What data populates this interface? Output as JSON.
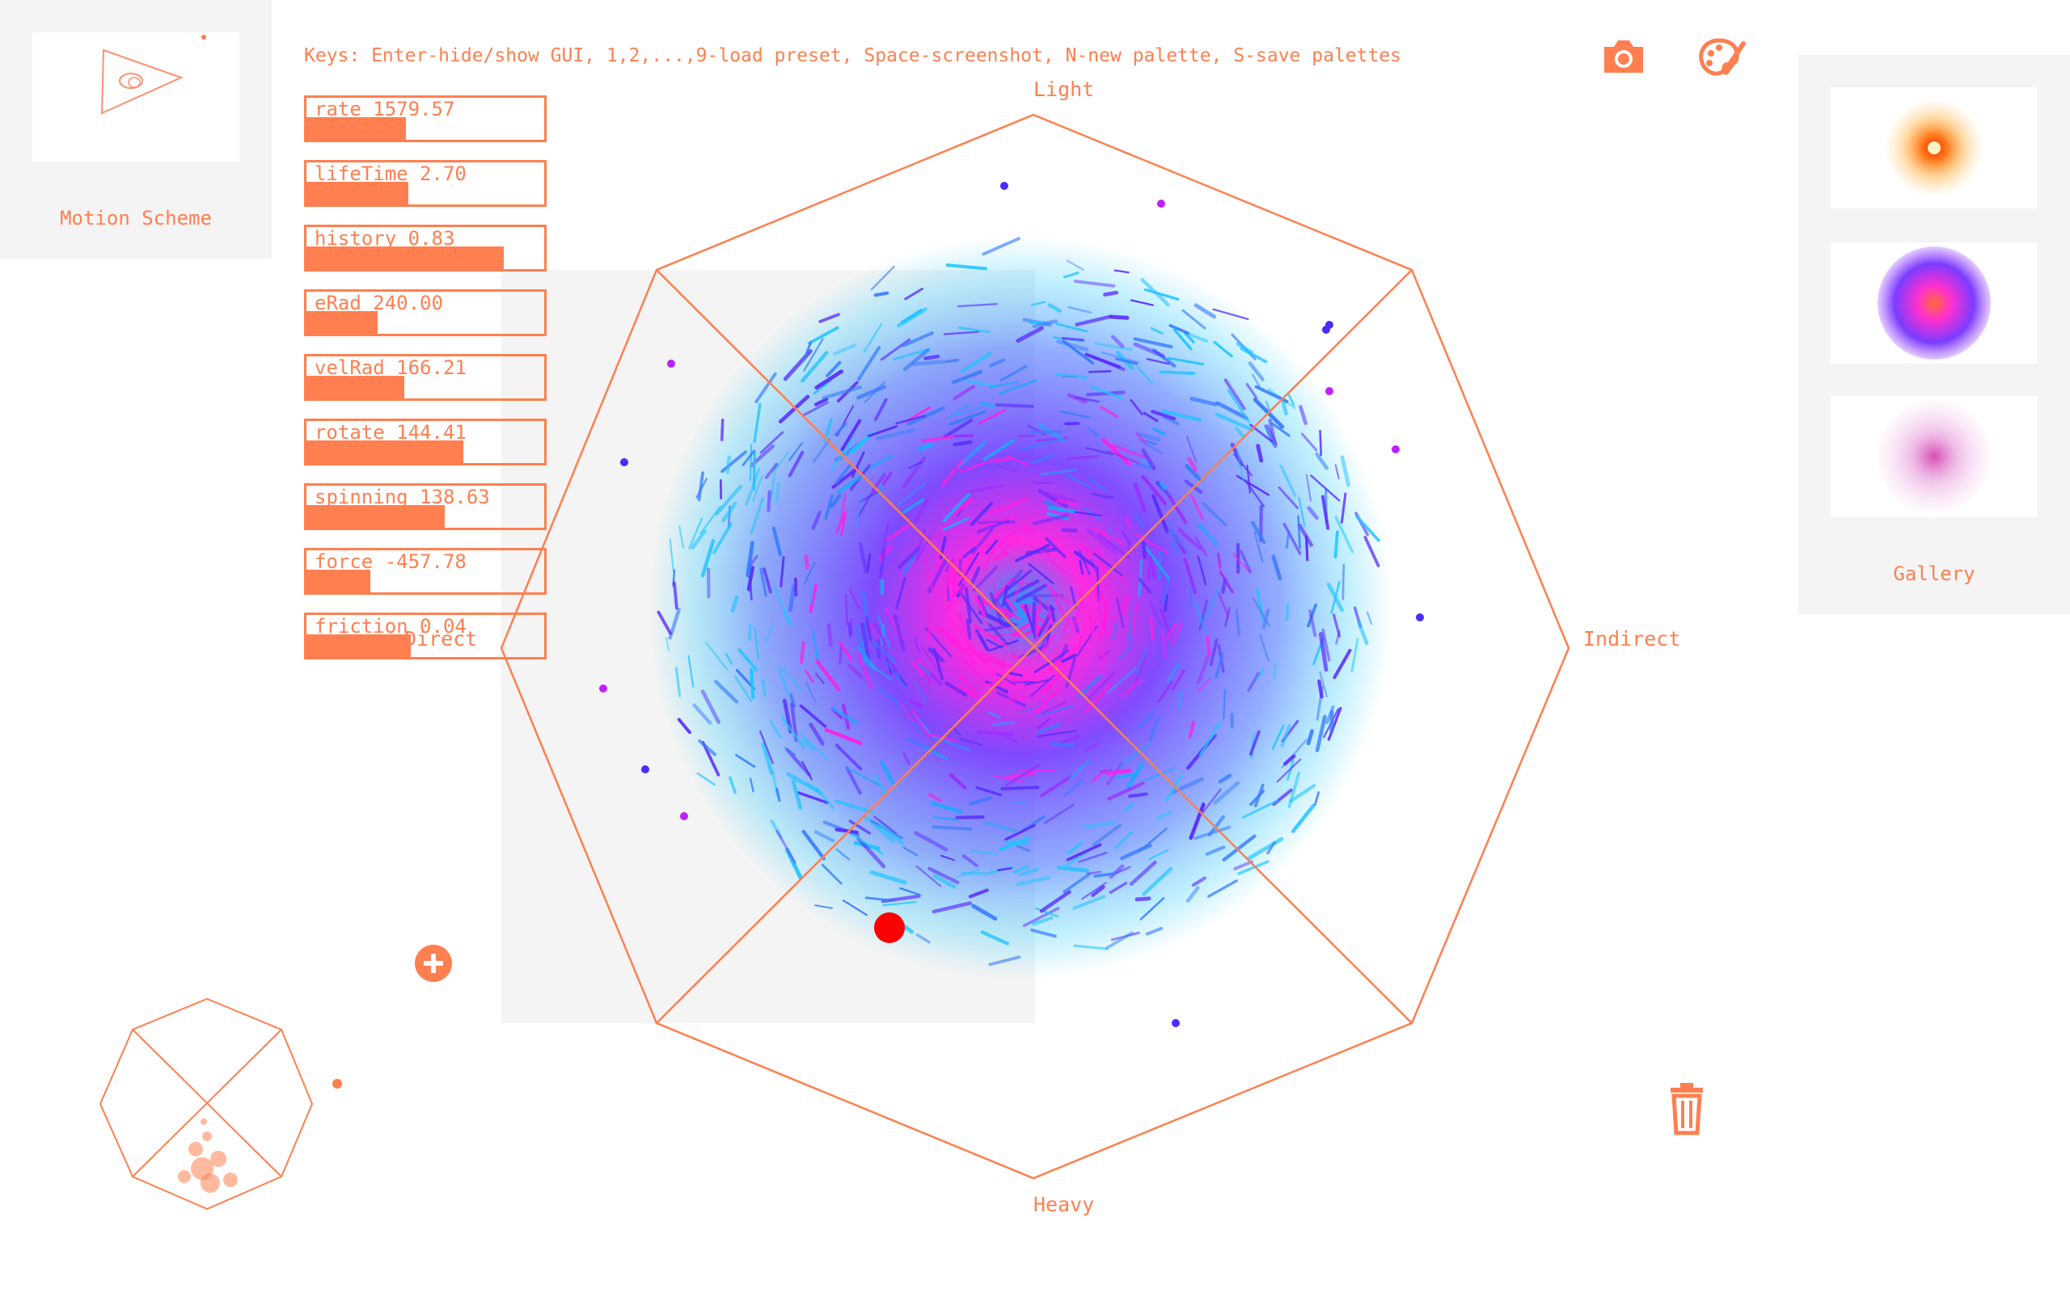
{
  "keys_hint": "Keys: Enter-hide/show GUI, 1,2,...,9-load preset, Space-screenshot, N-new palette, S-save palettes",
  "motion_scheme": {
    "label": "Motion Scheme"
  },
  "gallery": {
    "label": "Gallery",
    "thumb_count": 3
  },
  "axis_labels": {
    "top": "Light",
    "bottom": "Heavy",
    "left": "Direct",
    "right": "Indirect"
  },
  "sliders": [
    {
      "name": "rate",
      "display": "rate 1579.57",
      "fill": 0.42
    },
    {
      "name": "lifeTime",
      "display": "lifeTime 2.70",
      "fill": 0.43
    },
    {
      "name": "history",
      "display": "history 0.83",
      "fill": 0.83
    },
    {
      "name": "eRad",
      "display": "eRad 240.00",
      "fill": 0.3
    },
    {
      "name": "velRad",
      "display": "velRad 166.21",
      "fill": 0.41
    },
    {
      "name": "rotate",
      "display": "rotate 144.41",
      "fill": 0.66
    },
    {
      "name": "spinning",
      "display": "spinning 138.63",
      "fill": 0.58
    },
    {
      "name": "force",
      "display": "force -457.78",
      "fill": 0.27
    },
    {
      "name": "friction",
      "display": "friction 0.04",
      "fill": 0.44
    }
  ],
  "icons": {
    "camera": "camera-icon",
    "palette": "palette-icon",
    "add": "plus-icon",
    "trash": "trash-icon"
  },
  "colors": {
    "accent": "#ff7f50",
    "panel_bg": "#f4f4f4",
    "particle_core": "#ff00ff",
    "particle_mid": "#5a2cff",
    "particle_edge": "#22c4ff",
    "cursor_dot": "#ff0000"
  }
}
